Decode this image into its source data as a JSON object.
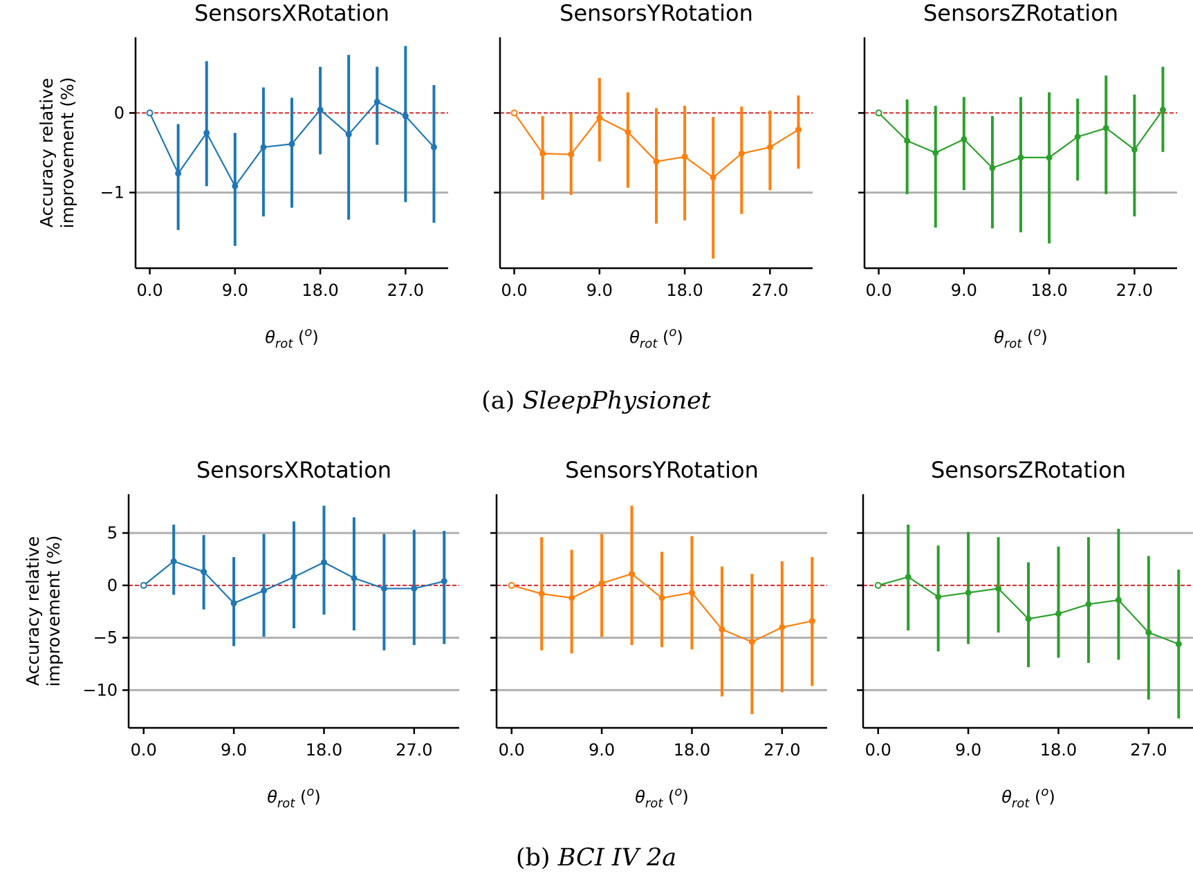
{
  "chart_data": [
    {
      "panel_id": "a",
      "caption_prefix": "(a)",
      "caption_name": "SleepPhysionet",
      "type": "line",
      "ylabel": [
        "Accuracy relative",
        "improvement (%)"
      ],
      "xlabel": {
        "main": "θ",
        "sub": "rot",
        "unit_open": " (",
        "unit_sup": "o",
        "unit_close": ")"
      },
      "xticks": [
        "0.0",
        "9.0",
        "18.0",
        "27.0"
      ],
      "xlim": [
        -1.5,
        31.5
      ],
      "ylim": [
        -1.95,
        0.95
      ],
      "yticks": [
        {
          "v": 0,
          "label": "0"
        },
        {
          "v": -1,
          "label": "−1"
        }
      ],
      "grid_lines": [
        -1
      ],
      "baseline": 0,
      "subplots": [
        {
          "title": "SensorsXRotation",
          "color": "#1f77b4",
          "x": [
            0,
            3,
            6,
            9,
            12,
            15,
            18,
            21,
            24,
            27,
            30
          ],
          "y": [
            0,
            -0.76,
            -0.25,
            -0.92,
            -0.43,
            -0.39,
            0.04,
            -0.27,
            0.14,
            -0.04,
            -0.43
          ],
          "err_low": [
            0,
            -1.47,
            -0.92,
            -1.67,
            -1.3,
            -1.19,
            -0.52,
            -1.34,
            -0.4,
            -1.12,
            -1.38
          ],
          "err_high": [
            0,
            -0.14,
            0.65,
            -0.25,
            0.32,
            0.19,
            0.58,
            0.73,
            0.58,
            0.84,
            0.35
          ]
        },
        {
          "title": "SensorsYRotation",
          "color": "#ff7f0e",
          "x": [
            0,
            3,
            6,
            9,
            12,
            15,
            18,
            21,
            24,
            27,
            30
          ],
          "y": [
            0,
            -0.51,
            -0.52,
            -0.06,
            -0.24,
            -0.61,
            -0.55,
            -0.81,
            -0.51,
            -0.43,
            -0.21
          ],
          "err_low": [
            0,
            -1.09,
            -1.03,
            -0.61,
            -0.94,
            -1.39,
            -1.35,
            -1.83,
            -1.27,
            -0.97,
            -0.7
          ],
          "err_high": [
            0,
            -0.04,
            -0.01,
            0.44,
            0.26,
            0.06,
            0.09,
            -0.05,
            0.08,
            0.03,
            0.22
          ]
        },
        {
          "title": "SensorsZRotation",
          "color": "#2ca02c",
          "x": [
            0,
            3,
            6,
            9,
            12,
            15,
            18,
            21,
            24,
            27,
            30
          ],
          "y": [
            0,
            -0.35,
            -0.5,
            -0.33,
            -0.69,
            -0.56,
            -0.56,
            -0.3,
            -0.19,
            -0.46,
            0.04
          ],
          "err_low": [
            0,
            -1.02,
            -1.44,
            -0.97,
            -1.45,
            -1.5,
            -1.64,
            -0.85,
            -1.02,
            -1.3,
            -0.49
          ],
          "err_high": [
            0,
            0.17,
            0.09,
            0.2,
            -0.04,
            0.2,
            0.26,
            0.18,
            0.47,
            0.23,
            0.58
          ]
        }
      ]
    },
    {
      "panel_id": "b",
      "caption_prefix": "(b)",
      "caption_name": "BCI IV 2a",
      "type": "line",
      "ylabel": [
        "Accuracy relative",
        "improvement (%)"
      ],
      "xlabel": {
        "main": "θ",
        "sub": "rot",
        "unit_open": " (",
        "unit_sup": "o",
        "unit_close": ")"
      },
      "xticks": [
        "0.0",
        "9.0",
        "18.0",
        "27.0"
      ],
      "xlim": [
        -1.5,
        31.5
      ],
      "ylim": [
        -13.6,
        8.7
      ],
      "yticks": [
        {
          "v": 5,
          "label": "5"
        },
        {
          "v": 0,
          "label": "0"
        },
        {
          "v": -5,
          "label": "−5"
        },
        {
          "v": -10,
          "label": "−10"
        }
      ],
      "grid_lines": [
        5,
        -5,
        -10
      ],
      "baseline": 0,
      "subplots": [
        {
          "title": "SensorsXRotation",
          "color": "#1f77b4",
          "x": [
            0,
            3,
            6,
            9,
            12,
            15,
            18,
            21,
            24,
            27,
            30
          ],
          "y": [
            0,
            2.3,
            1.3,
            -1.7,
            -0.5,
            0.8,
            2.2,
            0.7,
            -0.3,
            -0.3,
            0.4
          ],
          "err_low": [
            0,
            -0.9,
            -2.3,
            -5.8,
            -4.9,
            -4.1,
            -2.8,
            -4.3,
            -6.2,
            -5.7,
            -5.6
          ],
          "err_high": [
            0,
            5.8,
            4.8,
            2.7,
            4.9,
            6.1,
            7.6,
            6.5,
            4.9,
            5.3,
            5.2
          ]
        },
        {
          "title": "SensorsYRotation",
          "color": "#ff7f0e",
          "x": [
            0,
            3,
            6,
            9,
            12,
            15,
            18,
            21,
            24,
            27,
            30
          ],
          "y": [
            0,
            -0.8,
            -1.2,
            0.2,
            1.1,
            -1.2,
            -0.7,
            -4.2,
            -5.4,
            -4.0,
            -3.4
          ],
          "err_low": [
            0,
            -6.2,
            -6.5,
            -4.9,
            -5.7,
            -5.9,
            -6.1,
            -10.6,
            -12.3,
            -10.2,
            -9.6
          ],
          "err_high": [
            0,
            4.6,
            3.4,
            4.9,
            7.6,
            3.2,
            4.7,
            1.8,
            1.1,
            2.3,
            2.7
          ]
        },
        {
          "title": "SensorsZRotation",
          "color": "#2ca02c",
          "x": [
            0,
            3,
            6,
            9,
            12,
            15,
            18,
            21,
            24,
            27,
            30
          ],
          "y": [
            0,
            0.8,
            -1.1,
            -0.7,
            -0.3,
            -3.2,
            -2.7,
            -1.8,
            -1.4,
            -4.5,
            -5.6
          ],
          "err_low": [
            0,
            -4.3,
            -6.3,
            -5.6,
            -4.5,
            -7.8,
            -6.9,
            -7.4,
            -7.1,
            -10.9,
            -12.7
          ],
          "err_high": [
            0,
            5.8,
            3.8,
            5.1,
            4.6,
            2.2,
            3.7,
            4.6,
            5.4,
            2.8,
            1.5
          ]
        }
      ]
    }
  ]
}
